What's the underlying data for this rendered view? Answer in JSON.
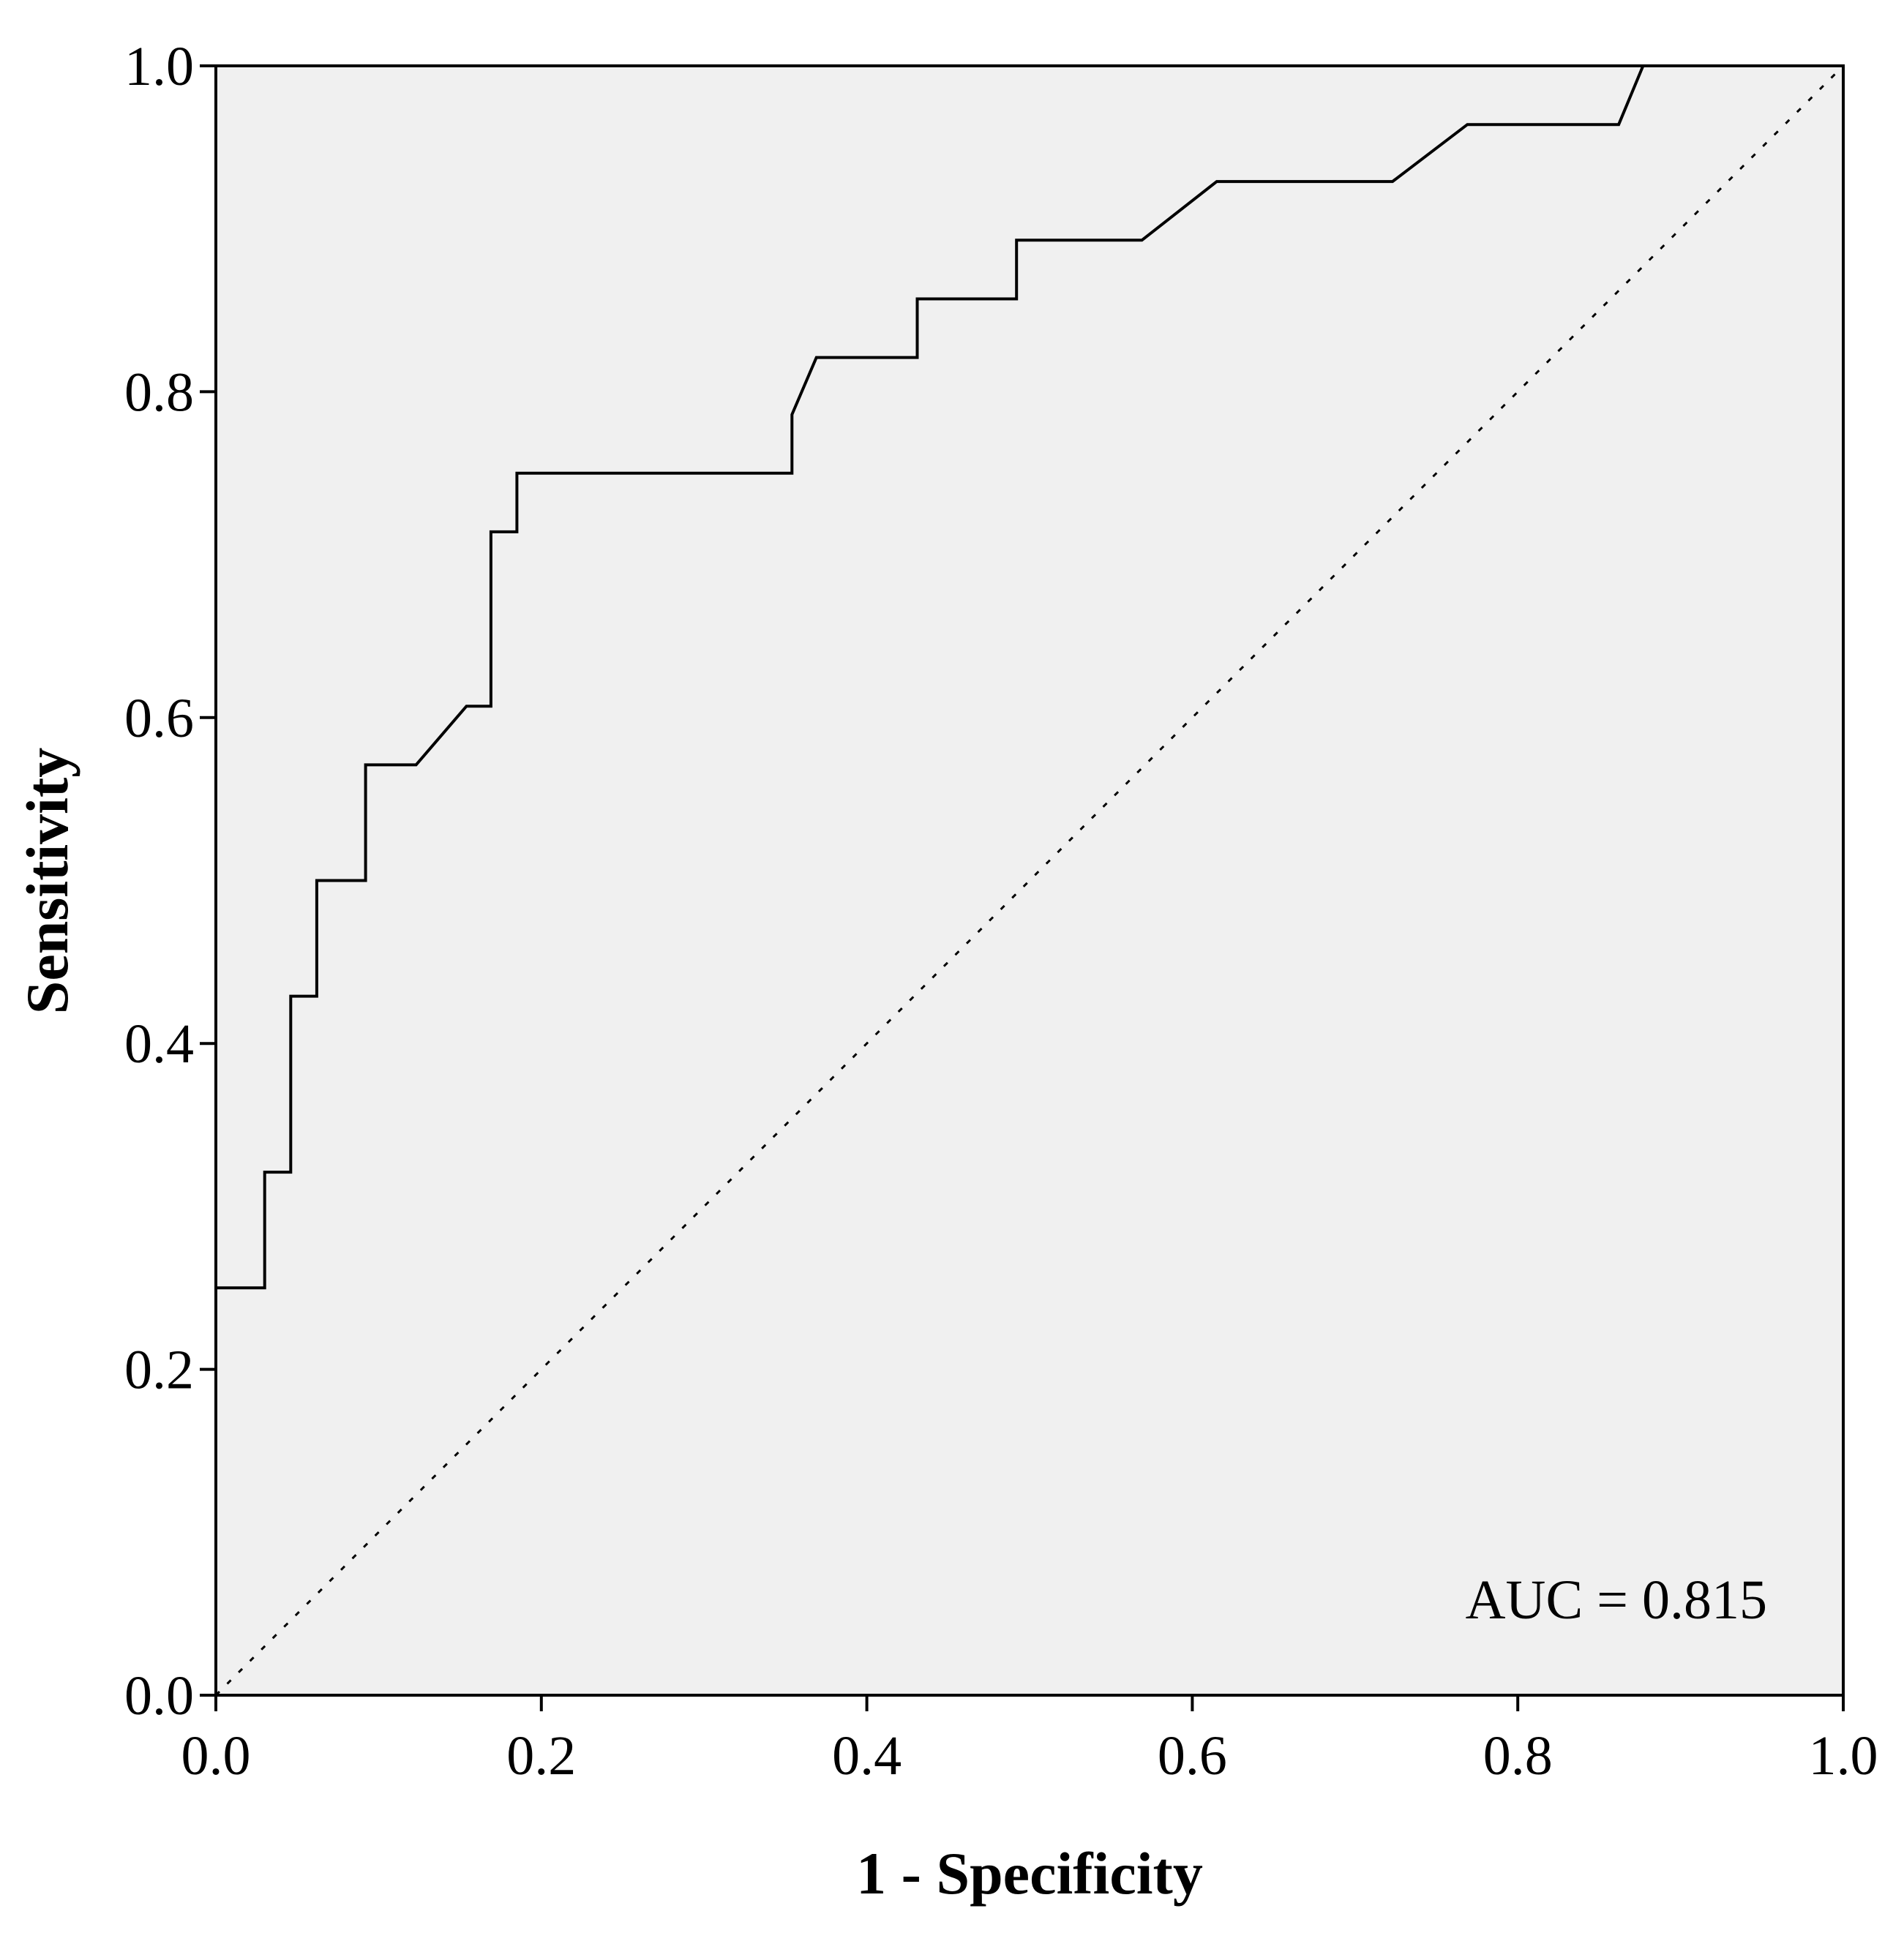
{
  "chart_data": {
    "type": "line",
    "title": "",
    "xlabel": "1 - Specificity",
    "ylabel": "Sensitivity",
    "xlim": [
      0,
      1
    ],
    "ylim": [
      0,
      1
    ],
    "grid": false,
    "x_ticks": [
      0.0,
      0.2,
      0.4,
      0.6,
      0.8,
      1.0
    ],
    "x_tick_labels": [
      "0.0",
      "0.2",
      "0.4",
      "0.6",
      "0.8",
      "1.0"
    ],
    "y_ticks": [
      0.0,
      0.2,
      0.4,
      0.6,
      0.8,
      1.0
    ],
    "y_tick_labels": [
      "0.0",
      "0.2",
      "0.4",
      "0.6",
      "0.8",
      "1.0"
    ],
    "annotation": "AUC = 0.815",
    "colors": {
      "plot_background": "#f0f0f0",
      "line": "#000000"
    },
    "series": [
      {
        "style": "solid",
        "x": [
          0.0,
          0.0,
          0.03,
          0.03,
          0.046,
          0.046,
          0.062,
          0.062,
          0.092,
          0.092,
          0.123,
          0.154,
          0.169,
          0.169,
          0.185,
          0.185,
          0.354,
          0.354,
          0.369,
          0.431,
          0.431,
          0.492,
          0.492,
          0.569,
          0.615,
          0.723,
          0.769,
          0.862,
          0.877,
          1.0
        ],
        "y": [
          0.0,
          0.25,
          0.25,
          0.321,
          0.321,
          0.429,
          0.429,
          0.5,
          0.5,
          0.571,
          0.571,
          0.607,
          0.607,
          0.714,
          0.714,
          0.75,
          0.75,
          0.786,
          0.821,
          0.821,
          0.857,
          0.857,
          0.893,
          0.893,
          0.929,
          0.929,
          0.964,
          0.964,
          1.0,
          1.0
        ]
      },
      {
        "style": "dotted",
        "x": [
          0,
          1
        ],
        "y": [
          0,
          1
        ]
      }
    ]
  }
}
